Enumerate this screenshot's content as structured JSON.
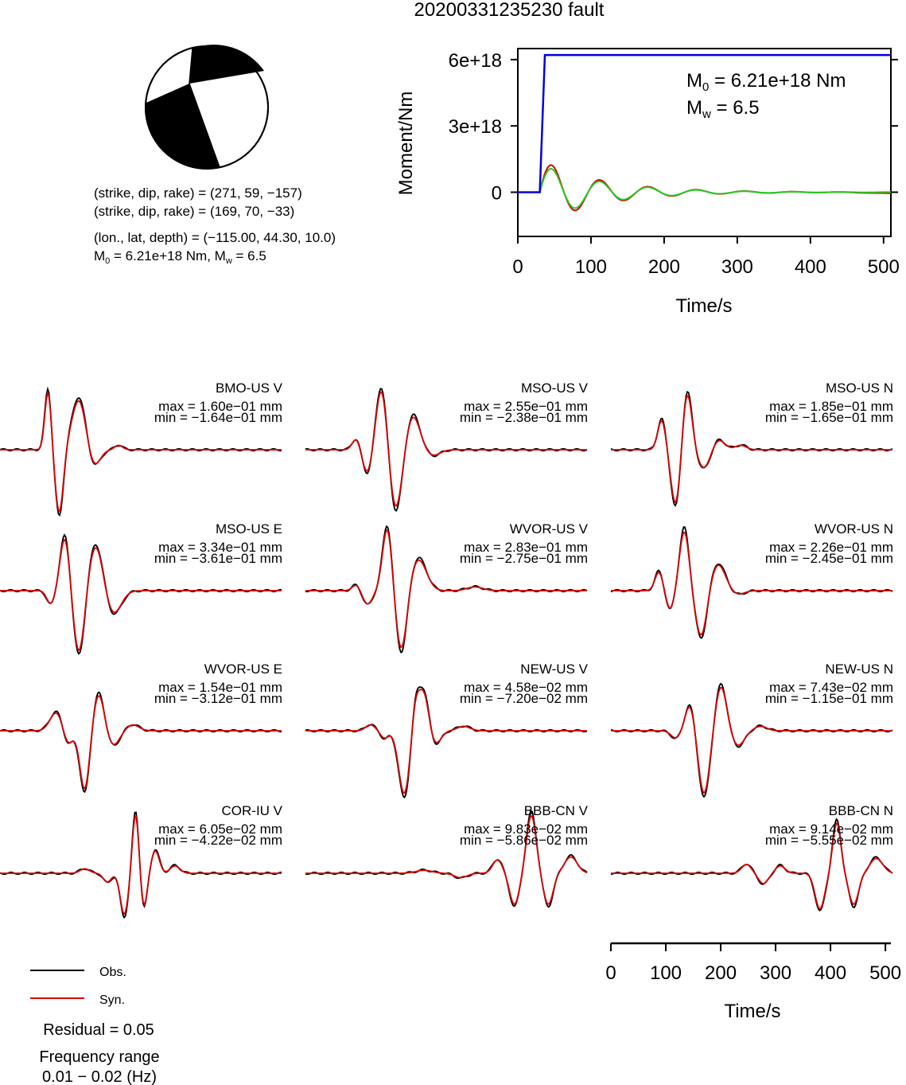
{
  "title": "20200331235230 fault",
  "mechanism": {
    "line1": "(strike, dip, rake) = (271, 59, −157)",
    "line2": "(strike, dip, rake) = (169, 70, −33)",
    "line3": "(lon., lat, depth) = (−115.00, 44.30, 10.0)",
    "m0_prefix": "M",
    "m0_sub": "0",
    "m0_rest": " = 6.21e+18 Nm, M",
    "mw_sub": "w",
    "mw_rest": " = 6.5"
  },
  "moment_plot": {
    "ylabel": "Moment/Nm",
    "xlabel": "Time/s",
    "yticks": [
      "6e+18",
      "3e+18",
      "0"
    ],
    "xticks": [
      "0",
      "100",
      "200",
      "300",
      "400",
      "500"
    ],
    "ann_m0_main": "M",
    "ann_m0_sub": "0",
    "ann_m0_rest": " = 6.21e+18 Nm",
    "ann_mw_main": "M",
    "ann_mw_sub": "w",
    "ann_mw_rest": " = 6.5",
    "colors": {
      "cumulative": "#0000dd",
      "rate_red": "#dd0000",
      "rate_green": "#22cc22"
    }
  },
  "chart_data": {
    "type": "line",
    "moment_function": {
      "x_range": [
        0,
        510
      ],
      "y_range": [
        -2e+18,
        6.5e+18
      ],
      "cumulative": {
        "t_start": 30,
        "t_end": 37,
        "value": 6.21e+18
      }
    },
    "waveforms": [
      {
        "station": "BMO-US V",
        "max": "max = 1.60e−01 mm",
        "min": "min = −1.64e−01 mm"
      },
      {
        "station": "MSO-US V",
        "max": "max = 2.55e−01 mm",
        "min": "min = −2.38e−01 mm"
      },
      {
        "station": "MSO-US N",
        "max": "max = 1.85e−01 mm",
        "min": "min = −1.65e−01 mm"
      },
      {
        "station": "MSO-US E",
        "max": "max = 3.34e−01 mm",
        "min": "min = −3.61e−01 mm"
      },
      {
        "station": "WVOR-US V",
        "max": "max = 2.83e−01 mm",
        "min": "min = −2.75e−01 mm"
      },
      {
        "station": "WVOR-US N",
        "max": "max = 2.26e−01 mm",
        "min": "min = −2.45e−01 mm"
      },
      {
        "station": "WVOR-US E",
        "max": "max = 1.54e−01 mm",
        "min": "min = −3.12e−01 mm"
      },
      {
        "station": "NEW-US V",
        "max": "max = 4.58e−02 mm",
        "min": "min = −7.20e−02 mm"
      },
      {
        "station": "NEW-US N",
        "max": "max = 7.43e−02 mm",
        "min": "min = −1.15e−01 mm"
      },
      {
        "station": "COR-IU V",
        "max": "max = 6.05e−02 mm",
        "min": "min = −4.22e−02 mm"
      },
      {
        "station": "BBB-CN V",
        "max": "max = 9.83e−02 mm",
        "min": "min = −5.86e−02 mm"
      },
      {
        "station": "BBB-CN N",
        "max": "max = 9.14e−02 mm",
        "min": "min = −5.55e−02 mm"
      }
    ],
    "time_axis": {
      "xlabel": "Time/s",
      "xticks": [
        "0",
        "100",
        "200",
        "300",
        "400",
        "500"
      ]
    }
  },
  "legend": {
    "obs": "Obs.",
    "syn": "Syn.",
    "obs_color": "#000000",
    "syn_color": "#dd0000"
  },
  "residual": "Residual = 0.05",
  "freq_label": "Frequency range",
  "freq_value": "0.01 − 0.02 (Hz)"
}
